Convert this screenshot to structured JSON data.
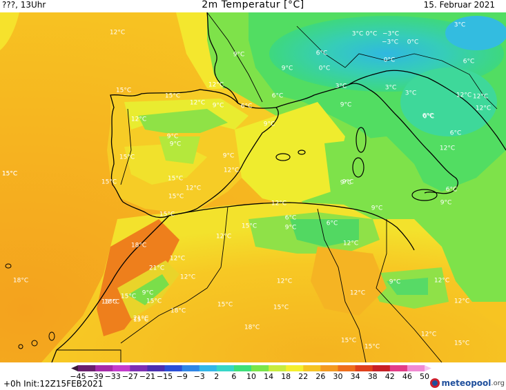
{
  "header": {
    "left": "???, 13Uhr",
    "title": "2m Temperatur [°C]",
    "date": "15. Februar 2021"
  },
  "colorbar": {
    "ticks": [
      "−45",
      "−39",
      "−33",
      "−27",
      "−21",
      "−15",
      "−9",
      "−3",
      "2",
      "6",
      "10",
      "14",
      "18",
      "22",
      "26",
      "30",
      "34",
      "38",
      "42",
      "46",
      "50"
    ],
    "colors": [
      "#3b1a3a",
      "#6a1f6d",
      "#a52aa8",
      "#c43ccd",
      "#7d2fb4",
      "#4b2fb0",
      "#2b4fd6",
      "#2f86e6",
      "#33b7e8",
      "#37d6c8",
      "#3ee07a",
      "#7ae64a",
      "#c8ec3e",
      "#f4ef2e",
      "#f6c423",
      "#f49a1f",
      "#ee6e1c",
      "#e0401b",
      "#c81f25",
      "#e23d87",
      "#f08ad2",
      "#f7c4ee"
    ]
  },
  "footer": {
    "init": "+0h  Init:12Z15FEB2021",
    "brand": "meteopool",
    "brand_tld": ".org"
  },
  "labels": [
    "12°C",
    "9°C",
    "9°C",
    "12°C",
    "6°C",
    "0°C",
    "3°C",
    "3°C",
    "0°C",
    "−3°C",
    "−3°C",
    "0°C",
    "0°C",
    "3°C",
    "6°C",
    "3°C",
    "3°C",
    "0°C",
    "6°C",
    "12°C",
    "15°C",
    "15°C",
    "12°C",
    "9°C",
    "6°C",
    "6°C",
    "9°C",
    "9°C",
    "12°C",
    "9°C",
    "9°C",
    "15°C",
    "9°C",
    "12°C",
    "6°C",
    "15°C",
    "15°C",
    "15°C",
    "12°C",
    "15°C",
    "9°C",
    "15°C",
    "12°C",
    "6°C",
    "6°C",
    "9°C",
    "15°C",
    "12°C",
    "9°C",
    "9°C",
    "6°C",
    "9°C",
    "12°C",
    "12°C",
    "18°C",
    "21°C",
    "12°C",
    "18°C",
    "12°C",
    "12°C",
    "9°C",
    "15°C",
    "15°C",
    "12°C",
    "18°C",
    "15°C",
    "18°C",
    "15°C",
    "15°C",
    "21°C",
    "18°C",
    "15°C",
    "12°C",
    "15°C",
    "15°C",
    "18°C",
    "12°C",
    "15°C",
    "12°C",
    "12°C",
    "12°C",
    "9°C"
  ]
}
